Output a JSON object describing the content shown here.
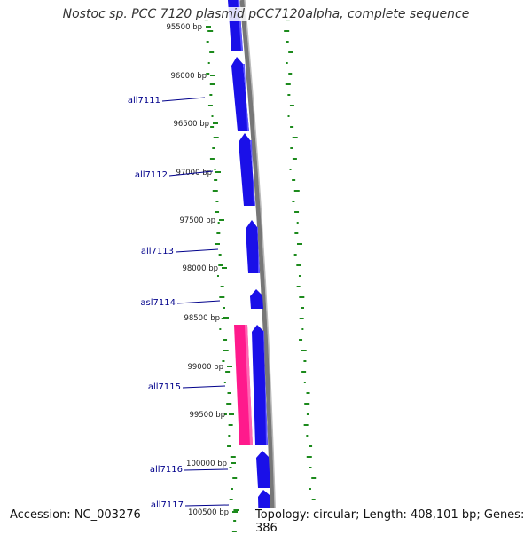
{
  "title": "Nostoc sp. PCC 7120 plasmid pCC7120alpha, complete sequence",
  "accession_text": "Accession: NC_003276",
  "summary_text": "Topology: circular; Length: 408,101 bp; Genes: 386",
  "colors": {
    "forward_gene": "#1a10e8",
    "forward_gene_light": "#5a52ff",
    "reverse_gene": "#ff1a8c",
    "reverse_gene_light": "#ff66b3",
    "backbone": "#888888",
    "gene_label": "#00008b",
    "tick_label": "#222222",
    "gc_marks": "#1c8a1c"
  },
  "tick_labels": [
    "95500 bp",
    "96000 bp",
    "96500 bp",
    "97000 bp",
    "97500 bp",
    "98000 bp",
    "98500 bp",
    "99000 bp",
    "99500 bp",
    "100000 bp",
    "100500 bp"
  ],
  "gene_labels": [
    "all7111",
    "all7112",
    "all7113",
    "asl7114",
    "all7115",
    "all7116",
    "all7117"
  ]
}
